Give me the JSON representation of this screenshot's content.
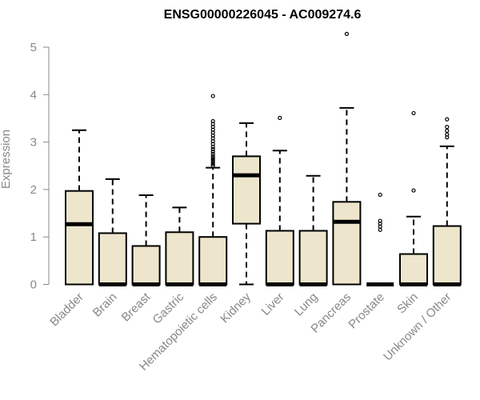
{
  "chart_data": {
    "type": "boxplot",
    "title": "ENSG00000226045 - AC009274.6",
    "ylabel": "Expression",
    "xlabel": "",
    "ylim": [
      0,
      5.3
    ],
    "yticks": [
      0,
      1,
      2,
      3,
      4,
      5
    ],
    "grid": false,
    "box_color": "#ede6cc",
    "categories": [
      "Bladder",
      "Brain",
      "Breast",
      "Gastric",
      "Hematopoietic cells",
      "Kidney",
      "Liver",
      "Lung",
      "Pancreas",
      "Prostate",
      "Skin",
      "Unknown / Other"
    ],
    "boxes": [
      {
        "min": 0,
        "q1": 0,
        "median": 1.27,
        "q3": 1.97,
        "max": 3.25,
        "outliers": []
      },
      {
        "min": 0,
        "q1": 0,
        "median": 0,
        "q3": 1.08,
        "max": 2.22,
        "outliers": []
      },
      {
        "min": 0,
        "q1": 0,
        "median": 0,
        "q3": 0.81,
        "max": 1.88,
        "outliers": []
      },
      {
        "min": 0,
        "q1": 0,
        "median": 0,
        "q3": 1.1,
        "max": 1.62,
        "outliers": []
      },
      {
        "min": 0,
        "q1": 0,
        "median": 0,
        "q3": 1.0,
        "max": 2.46,
        "outliers": [
          2.5,
          2.54,
          2.58,
          2.62,
          2.66,
          2.7,
          2.75,
          2.8,
          2.85,
          2.9,
          2.96,
          3.02,
          3.08,
          3.14,
          3.2,
          3.26,
          3.32,
          3.38,
          3.44,
          3.97
        ]
      },
      {
        "min": 0,
        "q1": 1.28,
        "median": 2.3,
        "q3": 2.7,
        "max": 3.4,
        "outliers": []
      },
      {
        "min": 0,
        "q1": 0,
        "median": 0,
        "q3": 1.13,
        "max": 2.82,
        "outliers": [
          3.51
        ]
      },
      {
        "min": 0,
        "q1": 0,
        "median": 0,
        "q3": 1.13,
        "max": 2.29,
        "outliers": []
      },
      {
        "min": 0,
        "q1": 0,
        "median": 1.32,
        "q3": 1.74,
        "max": 3.72,
        "outliers": [
          5.28
        ]
      },
      {
        "min": 0,
        "q1": 0,
        "median": 0,
        "q3": 0,
        "max": 0,
        "outliers": [
          1.15,
          1.22,
          1.28,
          1.34,
          1.89
        ]
      },
      {
        "min": 0,
        "q1": 0,
        "median": 0,
        "q3": 0.64,
        "max": 1.43,
        "outliers": [
          1.98,
          3.61
        ]
      },
      {
        "min": 0,
        "q1": 0,
        "median": 0,
        "q3": 1.23,
        "max": 2.91,
        "outliers": [
          3.1,
          3.16,
          3.24,
          3.32,
          3.48
        ]
      }
    ]
  }
}
